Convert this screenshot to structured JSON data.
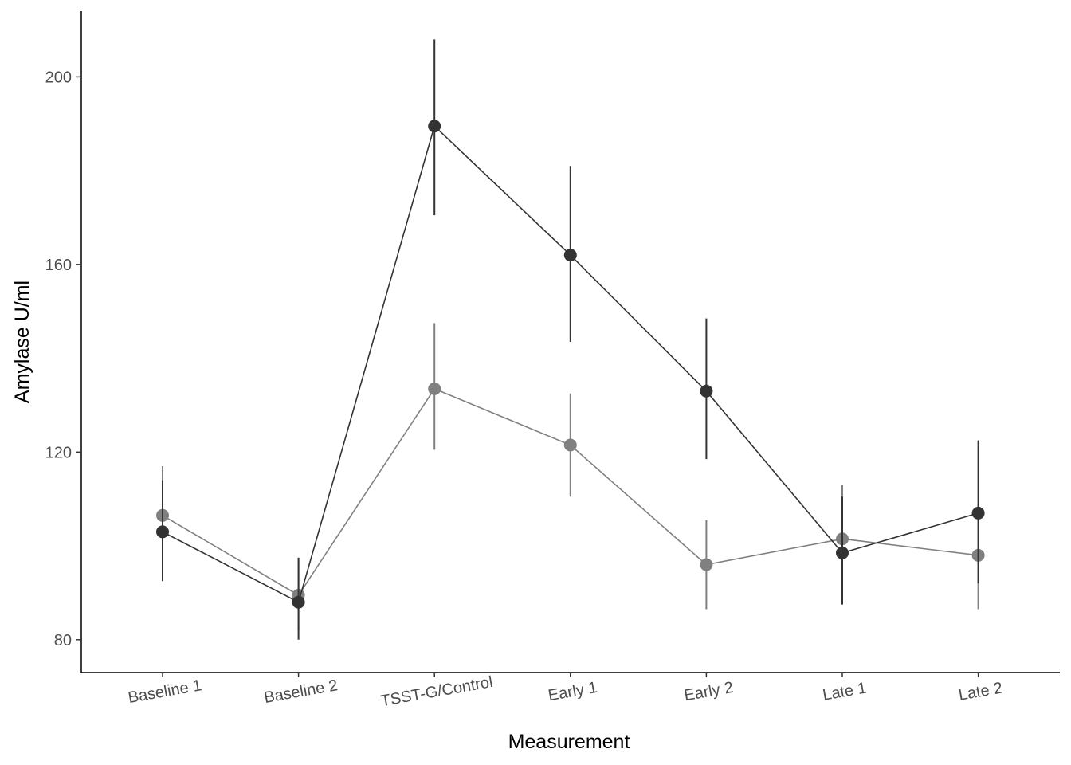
{
  "chart_data": {
    "type": "line",
    "title": "",
    "xlabel": "Measurement",
    "ylabel": "Amylase U/ml",
    "categories": [
      "Baseline 1",
      "Baseline 2",
      "TSST-G/Control",
      "Early 1",
      "Early 2",
      "Late 1",
      "Late 2"
    ],
    "yticks": [
      80,
      120,
      160,
      200
    ],
    "ylim": [
      73,
      214
    ],
    "grid": false,
    "legend": "none",
    "series": [
      {
        "color": "#333333",
        "values": [
          103.0,
          88.0,
          189.5,
          162.0,
          133.0,
          98.5,
          107.0
        ],
        "error_low": [
          92.5,
          80.0,
          170.5,
          143.5,
          118.5,
          87.5,
          92.0
        ],
        "error_high": [
          114.0,
          97.5,
          208.0,
          181.0,
          148.5,
          110.5,
          122.5
        ]
      },
      {
        "color": "#808080",
        "values": [
          106.5,
          89.5,
          133.5,
          121.5,
          96.0,
          101.5,
          98.0
        ],
        "error_low": [
          96.0,
          82.0,
          120.5,
          110.5,
          86.5,
          90.0,
          86.5
        ],
        "error_high": [
          117.0,
          97.0,
          147.5,
          132.5,
          105.5,
          113.0,
          109.0
        ]
      }
    ]
  }
}
